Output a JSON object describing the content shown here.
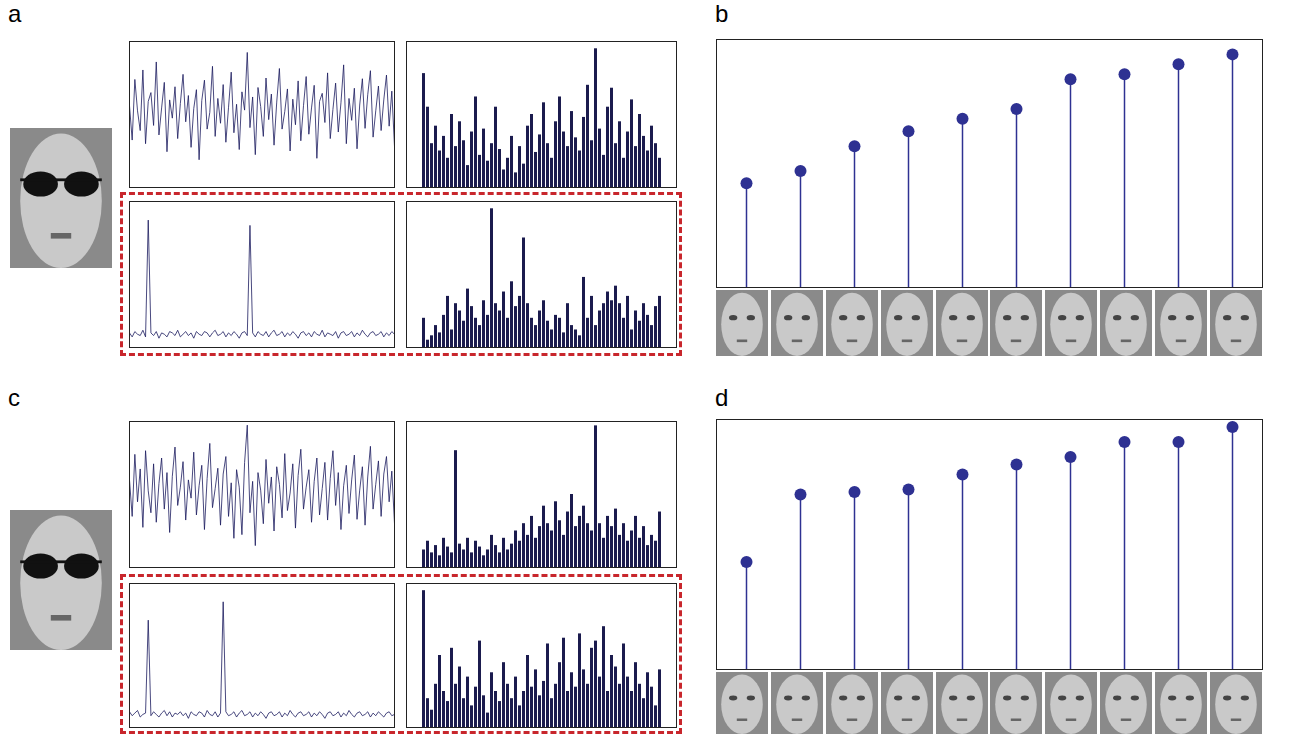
{
  "chart_data": [
    {
      "panel": "a",
      "type": "grid",
      "plots": [
        {
          "type": "line",
          "color": "#1b1b5e",
          "tick_labels": false,
          "xlim": [
            0,
            99
          ],
          "ylim": [
            -1,
            1
          ],
          "values": [
            0.12,
            -0.35,
            0.48,
            0.05,
            -0.22,
            0.61,
            -0.4,
            0.18,
            0.3,
            -0.15,
            0.72,
            -0.28,
            0.09,
            0.44,
            -0.51,
            0.2,
            -0.05,
            0.38,
            -0.33,
            0.15,
            0.55,
            -0.1,
            0.26,
            -0.45,
            0.08,
            0.34,
            -0.62,
            0.19,
            0.47,
            -0.2,
            0.03,
            0.66,
            -0.3,
            0.22,
            -0.12,
            0.41,
            -0.38,
            0.1,
            0.58,
            -0.25,
            0.14,
            -0.48,
            0.31,
            0.06,
            0.85,
            -0.18,
            0.24,
            -0.55,
            0.37,
            0.11,
            -0.3,
            0.5,
            -0.07,
            0.28,
            -0.42,
            0.17,
            0.63,
            -0.2,
            0.04,
            0.35,
            -0.5,
            0.21,
            -0.14,
            0.46,
            -0.36,
            0.12,
            0.52,
            -0.27,
            0.09,
            0.4,
            -0.6,
            0.18,
            0.29,
            -0.11,
            0.57,
            -0.33,
            0.07,
            0.43,
            -0.24,
            0.16,
            0.68,
            -0.4,
            0.22,
            -0.08,
            0.36,
            -0.47,
            0.13,
            0.49,
            -0.19,
            0.27,
            0.6,
            -0.31,
            0.05,
            0.39,
            -0.22,
            0.2,
            0.54,
            -0.16,
            0.32,
            -0.44
          ]
        },
        {
          "type": "bar",
          "color": "#1b1b4e",
          "tick_labels": false,
          "ylim": [
            0,
            1
          ],
          "values": [
            0.78,
            0.55,
            0.3,
            0.42,
            0.25,
            0.35,
            0.2,
            0.5,
            0.28,
            0.45,
            0.32,
            0.15,
            0.38,
            0.62,
            0.22,
            0.4,
            0.18,
            0.3,
            0.55,
            0.26,
            0.12,
            0.2,
            0.35,
            0.1,
            0.28,
            0.16,
            0.42,
            0.5,
            0.24,
            0.36,
            0.58,
            0.3,
            0.2,
            0.45,
            0.62,
            0.38,
            0.28,
            0.52,
            0.34,
            0.25,
            0.48,
            0.7,
            0.32,
            0.95,
            0.4,
            0.22,
            0.55,
            0.68,
            0.3,
            0.45,
            0.2,
            0.38,
            0.6,
            0.28,
            0.5,
            0.35,
            0.25,
            0.42,
            0.3,
            0.2
          ]
        },
        {
          "type": "line",
          "color": "#1b1b5e",
          "tick_labels": false,
          "xlim": [
            0,
            99
          ],
          "ylim": [
            -0.1,
            1
          ],
          "values": [
            0.01,
            -0.02,
            0.02,
            0.0,
            -0.01,
            0.03,
            -0.02,
            0.86,
            0.01,
            -0.01,
            0.02,
            -0.03,
            0.01,
            0.0,
            -0.02,
            0.02,
            0.01,
            -0.01,
            0.03,
            -0.02,
            0.0,
            0.02,
            -0.01,
            0.01,
            -0.03,
            0.02,
            0.0,
            -0.01,
            0.02,
            0.01,
            -0.02,
            0.01,
            0.03,
            -0.01,
            0.0,
            0.02,
            -0.02,
            0.01,
            -0.01,
            0.02,
            0.0,
            -0.03,
            0.01,
            0.02,
            -0.01,
            0.82,
            0.01,
            -0.02,
            0.02,
            0.0,
            -0.01,
            0.02,
            -0.02,
            0.01,
            0.03,
            -0.01,
            0.0,
            0.02,
            -0.02,
            0.01,
            -0.01,
            0.02,
            0.0,
            -0.03,
            0.01,
            0.02,
            -0.01,
            0.01,
            -0.02,
            0.02,
            0.0,
            -0.01,
            0.03,
            -0.02,
            0.01,
            0.0,
            -0.01,
            0.02,
            -0.03,
            0.01,
            0.02,
            -0.01,
            0.0,
            0.02,
            -0.02,
            0.01,
            -0.01,
            0.03,
            0.0,
            -0.02,
            0.01,
            0.02,
            -0.01,
            0.0,
            0.02,
            -0.02,
            0.01,
            -0.01,
            0.02,
            0.0
          ]
        },
        {
          "type": "bar",
          "color": "#1b1b4e",
          "tick_labels": false,
          "ylim": [
            0,
            1
          ],
          "values": [
            0.2,
            0.05,
            0.08,
            0.15,
            0.1,
            0.22,
            0.35,
            0.12,
            0.3,
            0.25,
            0.18,
            0.4,
            0.28,
            0.2,
            0.15,
            0.32,
            0.22,
            0.95,
            0.3,
            0.25,
            0.38,
            0.2,
            0.45,
            0.28,
            0.35,
            0.75,
            0.3,
            0.2,
            0.15,
            0.25,
            0.32,
            0.18,
            0.12,
            0.22,
            0.2,
            0.1,
            0.3,
            0.15,
            0.12,
            0.08,
            0.48,
            0.2,
            0.35,
            0.15,
            0.25,
            0.3,
            0.38,
            0.32,
            0.42,
            0.3,
            0.2,
            0.35,
            0.12,
            0.25,
            0.18,
            0.3,
            0.22,
            0.15,
            0.28,
            0.35
          ]
        }
      ]
    },
    {
      "panel": "b",
      "type": "stem",
      "color": "#2e3192",
      "marker": "circle",
      "tick_labels": false,
      "ylim": [
        0,
        1
      ],
      "categories": [
        null,
        null,
        null,
        null,
        null,
        null,
        null,
        null,
        null,
        null
      ],
      "values": [
        0.42,
        0.47,
        0.57,
        0.63,
        0.68,
        0.72,
        0.84,
        0.86,
        0.9,
        0.94
      ]
    },
    {
      "panel": "c",
      "type": "grid",
      "plots": [
        {
          "type": "line",
          "color": "#1b1b5e",
          "tick_labels": false,
          "xlim": [
            0,
            99
          ],
          "ylim": [
            -1,
            1
          ],
          "values": [
            0.2,
            -0.3,
            0.55,
            -0.1,
            0.35,
            -0.45,
            0.6,
            0.05,
            -0.25,
            0.42,
            -0.38,
            0.15,
            0.5,
            -0.2,
            0.3,
            -0.52,
            0.25,
            0.65,
            -0.15,
            0.1,
            0.45,
            -0.35,
            0.2,
            -0.05,
            0.58,
            -0.28,
            0.12,
            0.4,
            -0.48,
            0.22,
            0.7,
            -0.18,
            0.08,
            0.36,
            -0.42,
            0.28,
            0.52,
            -0.3,
            0.16,
            -0.6,
            0.34,
            0.1,
            -0.55,
            0.44,
            0.95,
            -0.25,
            0.18,
            -0.7,
            0.3,
            0.06,
            -0.4,
            0.48,
            -0.12,
            0.24,
            -0.5,
            0.38,
            0.14,
            -0.32,
            0.56,
            -0.22,
            0.02,
            0.42,
            -0.46,
            0.26,
            0.62,
            -0.2,
            0.1,
            0.34,
            -0.38,
            0.18,
            0.5,
            -0.28,
            0.08,
            0.44,
            -0.35,
            0.22,
            0.6,
            -0.15,
            0.3,
            -0.48,
            0.12,
            0.4,
            -0.26,
            0.2,
            0.54,
            -0.34,
            0.06,
            0.38,
            -0.42,
            0.24,
            0.66,
            -0.2,
            0.14,
            0.46,
            -0.3,
            0.28,
            0.52,
            -0.1,
            0.32,
            -0.4
          ]
        },
        {
          "type": "bar",
          "color": "#1b1b4e",
          "tick_labels": false,
          "ylim": [
            0,
            1
          ],
          "values": [
            0.12,
            0.18,
            0.1,
            0.15,
            0.08,
            0.2,
            0.14,
            0.1,
            0.8,
            0.16,
            0.12,
            0.2,
            0.1,
            0.18,
            0.14,
            0.08,
            0.12,
            0.22,
            0.15,
            0.1,
            0.2,
            0.12,
            0.16,
            0.25,
            0.18,
            0.3,
            0.22,
            0.35,
            0.2,
            0.28,
            0.42,
            0.3,
            0.25,
            0.45,
            0.32,
            0.22,
            0.38,
            0.5,
            0.28,
            0.35,
            0.42,
            0.3,
            0.25,
            0.97,
            0.3,
            0.2,
            0.35,
            0.28,
            0.4,
            0.22,
            0.3,
            0.18,
            0.25,
            0.35,
            0.2,
            0.28,
            0.15,
            0.22,
            0.18,
            0.38
          ]
        },
        {
          "type": "line",
          "color": "#1b1b5e",
          "tick_labels": false,
          "xlim": [
            0,
            99
          ],
          "ylim": [
            -0.1,
            1
          ],
          "values": [
            0.02,
            -0.01,
            0.01,
            0.03,
            -0.02,
            0.0,
            0.01,
            0.72,
            -0.01,
            0.02,
            0.0,
            -0.02,
            0.01,
            0.03,
            -0.01,
            0.02,
            -0.02,
            0.01,
            0.0,
            0.02,
            -0.01,
            0.01,
            -0.03,
            0.02,
            0.0,
            -0.01,
            0.02,
            0.01,
            -0.02,
            0.03,
            0.0,
            -0.01,
            0.02,
            -0.02,
            0.01,
            0.86,
            0.02,
            -0.01,
            0.0,
            0.02,
            -0.02,
            0.01,
            0.03,
            -0.01,
            0.0,
            0.02,
            -0.02,
            0.01,
            -0.01,
            0.02,
            0.0,
            -0.03,
            0.01,
            0.02,
            -0.01,
            0.0,
            0.02,
            -0.02,
            0.01,
            -0.01,
            0.03,
            0.0,
            -0.02,
            0.01,
            0.02,
            -0.01,
            0.0,
            0.02,
            -0.02,
            0.01,
            -0.01,
            0.02,
            0.0,
            -0.03,
            0.01,
            0.02,
            -0.01,
            0.0,
            0.02,
            -0.02,
            0.01,
            -0.01,
            0.03,
            0.0,
            -0.02,
            0.01,
            0.02,
            -0.01,
            0.0,
            0.02,
            -0.02,
            0.01,
            -0.01,
            0.02,
            0.0,
            -0.02,
            0.01,
            0.02,
            -0.01,
            0.0
          ]
        },
        {
          "type": "bar",
          "color": "#1b1b4e",
          "tick_labels": false,
          "ylim": [
            0,
            1
          ],
          "values": [
            0.95,
            0.2,
            0.12,
            0.3,
            0.5,
            0.25,
            0.18,
            0.55,
            0.3,
            0.42,
            0.2,
            0.35,
            0.15,
            0.28,
            0.6,
            0.22,
            0.1,
            0.38,
            0.25,
            0.18,
            0.45,
            0.3,
            0.2,
            0.35,
            0.15,
            0.25,
            0.5,
            0.28,
            0.4,
            0.22,
            0.32,
            0.58,
            0.2,
            0.3,
            0.45,
            0.62,
            0.25,
            0.38,
            0.28,
            0.65,
            0.4,
            0.3,
            0.55,
            0.6,
            0.35,
            0.7,
            0.25,
            0.5,
            0.42,
            0.3,
            0.58,
            0.35,
            0.25,
            0.45,
            0.3,
            0.2,
            0.38,
            0.28,
            0.15,
            0.4
          ]
        }
      ]
    },
    {
      "panel": "d",
      "type": "stem",
      "color": "#2e3192",
      "marker": "circle",
      "tick_labels": false,
      "ylim": [
        0,
        1
      ],
      "categories": [
        null,
        null,
        null,
        null,
        null,
        null,
        null,
        null,
        null,
        null
      ],
      "values": [
        0.43,
        0.7,
        0.71,
        0.72,
        0.78,
        0.82,
        0.85,
        0.91,
        0.91,
        0.97
      ]
    }
  ]
}
